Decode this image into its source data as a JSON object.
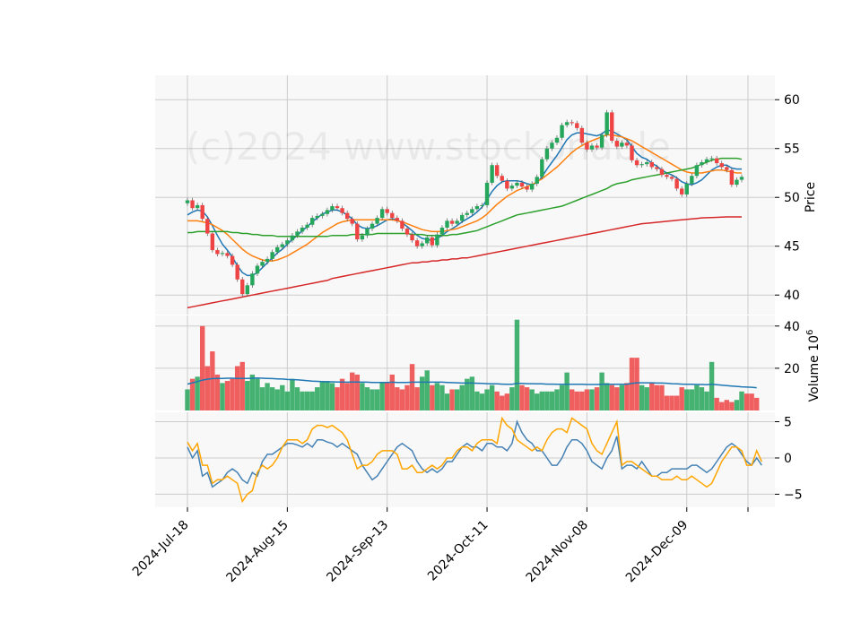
{
  "chart_data": {
    "type": "candlestick",
    "watermark": "(c)2024 www.stockonable",
    "colors": {
      "up": "#26a65b",
      "down": "#ef4444",
      "ma_short": "#1f77b4",
      "ma_mid": "#ff7f0e",
      "ma_long": "#2ca02c",
      "ma_200": "#d62728",
      "osc_a": "#4682b4",
      "osc_b": "#ffa500",
      "vol_ma": "#1f77b4",
      "grid": "#cccccc",
      "panel_bg": "#f8f8f8"
    },
    "x_tick_labels": [
      "2024-Jul-18",
      "2024-Aug-15",
      "2024-Sep-13",
      "2024-Oct-11",
      "2024-Nov-08",
      "2024-Dec-09"
    ],
    "x_tick_index": [
      0,
      20,
      40,
      60,
      80,
      100
    ],
    "price_panel": {
      "ylabel": "Price",
      "ylim": [
        38,
        62.5
      ],
      "yticks": [
        40,
        45,
        50,
        55,
        60
      ],
      "close": [
        49.7,
        48.9,
        49.2,
        47.8,
        46.3,
        44.6,
        44.2,
        44.3,
        44.0,
        43.1,
        41.6,
        40.1,
        41.0,
        42.2,
        43.0,
        43.4,
        43.7,
        44.4,
        44.9,
        45.2,
        45.6,
        46.1,
        46.5,
        46.9,
        47.2,
        47.9,
        48.1,
        48.3,
        48.7,
        49.1,
        48.9,
        48.4,
        47.8,
        47.3,
        45.7,
        46.1,
        46.8,
        47.3,
        47.9,
        48.8,
        48.4,
        47.9,
        47.6,
        46.8,
        46.2,
        45.6,
        45.0,
        45.3,
        45.9,
        45.1,
        46.2,
        46.9,
        47.6,
        47.3,
        47.6,
        48.2,
        48.4,
        48.8,
        49.1,
        49.2,
        51.5,
        53.3,
        52.2,
        51.7,
        50.9,
        51.2,
        51.5,
        51.1,
        50.8,
        51.4,
        52.1,
        53.9,
        55.0,
        55.6,
        56.1,
        57.4,
        57.7,
        57.6,
        57.1,
        55.6,
        54.9,
        55.3,
        55.1,
        56.4,
        58.7,
        55.8,
        55.2,
        55.6,
        55.3,
        53.8,
        53.3,
        53.4,
        53.6,
        53.1,
        52.9,
        52.3,
        52.1,
        51.9,
        50.9,
        50.3,
        51.4,
        52.2,
        53.3,
        53.6,
        53.9,
        54.0,
        53.5,
        53.1,
        52.8,
        51.3,
        51.8,
        52.1
      ],
      "candle_ohlc_note": "open = previous close",
      "ma": [
        {
          "color": "#1f77b4",
          "values": [
            48.2,
            48.5,
            48.7,
            48.6,
            48.0,
            47.1,
            46.1,
            45.2,
            44.6,
            43.9,
            43.0,
            42.3,
            42.0,
            42.0,
            42.3,
            42.8,
            43.3,
            43.8,
            44.3,
            44.7,
            45.2,
            45.7,
            46.1,
            46.6,
            47.0,
            47.5,
            47.9,
            48.3,
            48.5,
            48.7,
            48.7,
            48.5,
            48.2,
            47.8,
            47.2,
            46.9,
            46.8,
            46.9,
            47.1,
            47.4,
            47.7,
            47.8,
            47.7,
            47.4,
            47.0,
            46.6,
            46.1,
            45.8,
            45.7,
            45.6,
            45.8,
            46.1,
            46.5,
            46.8,
            47.1,
            47.5,
            47.8,
            48.1,
            48.5,
            49.0,
            49.8,
            50.6,
            51.2,
            51.6,
            51.7,
            51.7,
            51.7,
            51.6,
            51.4,
            51.3,
            51.5,
            52.1,
            52.9,
            53.6,
            54.3,
            55.1,
            55.9,
            56.4,
            56.6,
            56.6,
            56.5,
            56.4,
            56.3,
            56.5,
            56.9,
            56.8,
            56.5,
            56.2,
            55.9,
            55.2,
            54.5,
            54.1,
            53.9,
            53.5,
            53.2,
            52.8,
            52.5,
            52.3,
            52.0,
            51.6,
            51.4,
            51.3,
            51.5,
            51.8,
            52.3,
            52.8,
            53.1,
            53.3,
            53.3,
            53.0,
            52.9,
            52.9
          ]
        },
        {
          "color": "#ff7f0e",
          "values": [
            47.6,
            47.6,
            47.6,
            47.5,
            47.4,
            47.2,
            46.9,
            46.6,
            46.2,
            45.7,
            45.2,
            44.7,
            44.3,
            44.0,
            43.8,
            43.6,
            43.5,
            43.5,
            43.6,
            43.8,
            44.0,
            44.3,
            44.6,
            44.9,
            45.2,
            45.6,
            46.0,
            46.4,
            46.7,
            47.0,
            47.3,
            47.5,
            47.6,
            47.7,
            47.7,
            47.7,
            47.7,
            47.7,
            47.7,
            47.7,
            47.7,
            47.7,
            47.6,
            47.5,
            47.3,
            47.1,
            46.9,
            46.7,
            46.6,
            46.5,
            46.5,
            46.5,
            46.6,
            46.7,
            46.8,
            47.0,
            47.2,
            47.4,
            47.6,
            47.9,
            48.3,
            48.8,
            49.3,
            49.7,
            50.1,
            50.4,
            50.7,
            50.9,
            51.1,
            51.3,
            51.6,
            51.9,
            52.3,
            52.7,
            53.1,
            53.6,
            54.1,
            54.6,
            55.0,
            55.3,
            55.6,
            55.8,
            56.0,
            56.2,
            56.4,
            56.4,
            56.3,
            56.2,
            56.0,
            55.8,
            55.5,
            55.2,
            54.9,
            54.6,
            54.3,
            54.0,
            53.7,
            53.4,
            53.1,
            52.8,
            52.6,
            52.5,
            52.5,
            52.5,
            52.6,
            52.7,
            52.8,
            52.8,
            52.7,
            52.6,
            52.5,
            52.5
          ]
        },
        {
          "color": "#2ca02c",
          "values": [
            46.4,
            46.4,
            46.5,
            46.5,
            46.5,
            46.5,
            46.5,
            46.5,
            46.5,
            46.4,
            46.4,
            46.3,
            46.3,
            46.2,
            46.2,
            46.1,
            46.1,
            46.1,
            46.0,
            46.0,
            46.0,
            46.0,
            46.0,
            46.0,
            46.0,
            46.0,
            46.0,
            46.0,
            46.0,
            46.1,
            46.1,
            46.1,
            46.1,
            46.2,
            46.2,
            46.2,
            46.2,
            46.2,
            46.3,
            46.3,
            46.3,
            46.3,
            46.3,
            46.3,
            46.3,
            46.2,
            46.2,
            46.2,
            46.1,
            46.1,
            46.1,
            46.1,
            46.1,
            46.2,
            46.2,
            46.3,
            46.4,
            46.5,
            46.6,
            46.8,
            47.0,
            47.2,
            47.4,
            47.6,
            47.8,
            48.0,
            48.2,
            48.3,
            48.4,
            48.5,
            48.6,
            48.7,
            48.8,
            48.9,
            49.0,
            49.1,
            49.3,
            49.5,
            49.7,
            49.9,
            50.1,
            50.3,
            50.5,
            50.7,
            50.9,
            51.2,
            51.4,
            51.5,
            51.6,
            51.8,
            51.9,
            52.0,
            52.1,
            52.2,
            52.3,
            52.4,
            52.5,
            52.6,
            52.7,
            52.8,
            52.9,
            53.0,
            53.2,
            53.4,
            53.6,
            53.8,
            53.9,
            54.0,
            54.0,
            54.0,
            54.0,
            53.9
          ]
        },
        {
          "color": "#d62728",
          "values": [
            38.7,
            38.8,
            38.9,
            39.0,
            39.1,
            39.2,
            39.3,
            39.4,
            39.5,
            39.6,
            39.7,
            39.8,
            39.9,
            40.0,
            40.1,
            40.2,
            40.3,
            40.4,
            40.5,
            40.6,
            40.7,
            40.8,
            40.9,
            41.0,
            41.1,
            41.2,
            41.3,
            41.4,
            41.5,
            41.7,
            41.8,
            41.9,
            42.0,
            42.1,
            42.2,
            42.3,
            42.4,
            42.5,
            42.6,
            42.7,
            42.8,
            42.9,
            43.0,
            43.1,
            43.2,
            43.3,
            43.3,
            43.4,
            43.4,
            43.5,
            43.5,
            43.6,
            43.6,
            43.7,
            43.7,
            43.8,
            43.8,
            43.9,
            44.0,
            44.1,
            44.2,
            44.3,
            44.4,
            44.5,
            44.6,
            44.7,
            44.8,
            44.9,
            45.0,
            45.1,
            45.2,
            45.3,
            45.4,
            45.5,
            45.6,
            45.7,
            45.8,
            45.9,
            46.0,
            46.1,
            46.2,
            46.3,
            46.4,
            46.5,
            46.6,
            46.7,
            46.8,
            46.9,
            47.0,
            47.1,
            47.2,
            47.3,
            47.35,
            47.4,
            47.45,
            47.5,
            47.55,
            47.6,
            47.65,
            47.7,
            47.75,
            47.8,
            47.85,
            47.9,
            47.92,
            47.94,
            47.96,
            47.98,
            48.0,
            48.0,
            48.0,
            48.0
          ]
        }
      ]
    },
    "volume_panel": {
      "ylabel": "Volume 10",
      "ylabel_exponent": "6",
      "ylim": [
        0,
        45
      ],
      "yticks": [
        20,
        40
      ],
      "values": [
        10,
        15,
        16,
        40,
        21,
        28,
        17,
        13,
        14,
        15,
        21,
        23,
        14,
        17,
        15,
        11,
        13,
        11,
        10,
        12,
        9,
        15,
        11,
        9,
        9,
        9,
        11,
        14,
        14,
        13,
        11,
        15,
        13,
        18,
        17,
        13,
        11,
        10,
        10,
        13,
        13,
        17,
        11,
        10,
        12,
        22,
        11,
        16,
        19,
        12,
        13,
        12,
        8,
        10,
        10,
        12,
        15,
        16,
        9,
        8,
        10,
        12,
        9,
        7,
        8,
        11,
        43,
        12,
        11,
        10,
        8,
        9,
        9,
        9,
        10,
        12,
        18,
        10,
        9,
        9,
        10,
        10,
        11,
        18,
        13,
        12,
        11,
        12,
        13,
        25,
        25,
        12,
        11,
        13,
        12,
        12,
        7,
        7,
        7,
        11,
        10,
        10,
        12,
        11,
        9,
        23,
        6,
        4,
        5,
        4,
        5,
        9,
        8,
        8,
        6
      ],
      "ma_values": [
        12.5,
        13.1,
        13.7,
        14.4,
        14.8,
        15.1,
        15.2,
        15.2,
        15.3,
        15.3,
        15.2,
        15.2,
        15.2,
        15.3,
        15.4,
        15.3,
        15.2,
        15.1,
        15.0,
        14.9,
        14.7,
        14.6,
        14.5,
        14.3,
        14.1,
        13.9,
        13.8,
        13.7,
        13.6,
        13.6,
        13.5,
        13.5,
        13.4,
        13.5,
        13.5,
        13.4,
        13.4,
        13.3,
        13.3,
        13.3,
        13.3,
        13.4,
        13.3,
        13.3,
        13.3,
        13.4,
        13.4,
        13.4,
        13.4,
        13.4,
        13.4,
        13.4,
        13.3,
        13.2,
        13.1,
        13.0,
        13.0,
        13.0,
        12.9,
        12.8,
        12.7,
        12.6,
        12.6,
        12.5,
        12.4,
        12.4,
        12.8,
        12.8,
        12.7,
        12.7,
        12.6,
        12.6,
        12.5,
        12.5,
        12.4,
        12.4,
        12.4,
        12.4,
        12.4,
        12.4,
        12.3,
        12.3,
        12.3,
        12.4,
        12.4,
        12.4,
        12.4,
        12.4,
        12.4,
        12.8,
        13.1,
        13.1,
        13.1,
        13.1,
        13.0,
        13.0,
        12.9,
        12.7,
        12.6,
        12.5,
        12.4,
        12.4,
        12.3,
        12.3,
        12.2,
        12.4,
        12.2,
        12.0,
        11.8,
        11.6,
        11.4,
        11.2,
        11.1,
        11.0,
        10.8
      ]
    },
    "oscillator_panel": {
      "ylim": [
        -6.8,
        6.3
      ],
      "yticks": [
        -5,
        0,
        5
      ],
      "series": [
        {
          "color": "#4682b4",
          "values": [
            1.5,
            0.0,
            1.0,
            -2.5,
            -2.0,
            -4.0,
            -3.5,
            -3.0,
            -2.0,
            -1.5,
            -2.0,
            -3.0,
            -3.5,
            -2.0,
            -2.5,
            -0.5,
            0.5,
            0.5,
            1.0,
            1.5,
            2.0,
            2.0,
            1.8,
            1.5,
            2.0,
            1.5,
            2.5,
            2.5,
            2.2,
            2.0,
            1.5,
            2.0,
            1.5,
            1.0,
            0.5,
            -1.0,
            -2.0,
            -3.0,
            -2.5,
            -1.5,
            -0.5,
            0.5,
            1.5,
            2.0,
            1.5,
            1.0,
            -0.5,
            -1.5,
            -2.0,
            -1.5,
            -2.0,
            -1.5,
            -0.5,
            -0.5,
            0.5,
            1.5,
            2.0,
            1.5,
            1.5,
            1.0,
            2.0,
            2.0,
            1.5,
            1.5,
            1.0,
            2.0,
            5.0,
            3.5,
            2.5,
            2.0,
            1.0,
            1.0,
            0.0,
            -1.0,
            -1.0,
            0.0,
            1.5,
            2.5,
            2.5,
            2.0,
            1.0,
            -0.5,
            -1.0,
            -1.5,
            0.0,
            1.0,
            3.0,
            -1.5,
            -1.0,
            -1.0,
            -1.5,
            -0.5,
            -1.5,
            -2.5,
            -2.5,
            -2.0,
            -2.0,
            -1.5,
            -1.5,
            -1.5,
            -1.5,
            -1.0,
            -1.0,
            -1.5,
            -2.0,
            -1.5,
            -0.5,
            0.5,
            1.5,
            2.0,
            1.5,
            0.5,
            -0.5,
            -1.0,
            0.0,
            -1.0
          ]
        },
        {
          "color": "#ffa500",
          "values": [
            2.2,
            1.0,
            2.0,
            -1.0,
            -1.0,
            -3.5,
            -3.0,
            -3.0,
            -2.5,
            -3.0,
            -3.5,
            -6.0,
            -5.0,
            -4.5,
            -2.0,
            -1.0,
            -1.5,
            -1.0,
            0.0,
            1.5,
            2.5,
            2.5,
            2.5,
            2.0,
            2.5,
            4.0,
            4.5,
            4.5,
            4.2,
            4.5,
            4.0,
            3.5,
            2.5,
            0.5,
            -1.5,
            -1.0,
            -1.0,
            -0.5,
            0.5,
            1.0,
            1.0,
            1.0,
            0.5,
            -1.5,
            -1.5,
            -1.0,
            -2.0,
            -2.0,
            -1.5,
            -1.0,
            -1.5,
            -1.0,
            0.0,
            0.0,
            1.0,
            1.5,
            1.5,
            1.0,
            2.0,
            2.5,
            2.5,
            2.5,
            2.0,
            5.5,
            4.5,
            4.0,
            2.5,
            2.0,
            1.5,
            1.0,
            1.5,
            1.0,
            2.5,
            3.5,
            4.0,
            4.0,
            3.5,
            5.5,
            5.0,
            4.5,
            4.0,
            2.0,
            1.0,
            0.5,
            2.0,
            3.5,
            5.0,
            -1.0,
            -0.5,
            -0.5,
            -1.0,
            -1.5,
            -2.0,
            -2.5,
            -2.5,
            -3.0,
            -3.0,
            -3.0,
            -2.5,
            -3.0,
            -3.0,
            -2.5,
            -3.0,
            -3.5,
            -4.0,
            -3.5,
            -2.0,
            -0.5,
            0.5,
            1.5,
            1.5,
            1.0,
            -1.0,
            -1.0,
            1.0,
            -0.5
          ]
        }
      ]
    }
  }
}
